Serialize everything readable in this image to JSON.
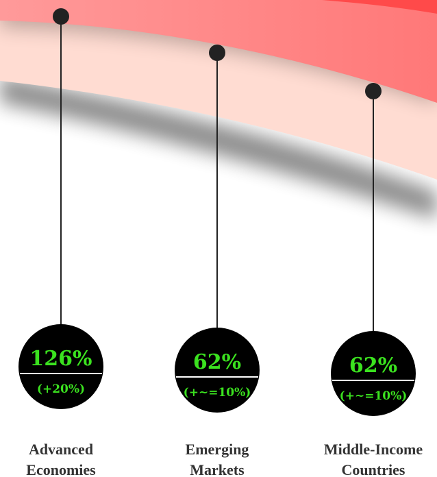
{
  "items": [
    {
      "value": "126%",
      "change": "(+20%)",
      "name_lines": [
        "Advanced",
        "Economies"
      ]
    },
    {
      "value": "62%",
      "change": "(+~=10%)",
      "name_lines": [
        "Emerging",
        "Markets"
      ]
    },
    {
      "value": "62%",
      "change": "(+~=10%)",
      "name_lines": [
        "Middle-Income",
        "Countries"
      ]
    }
  ]
}
